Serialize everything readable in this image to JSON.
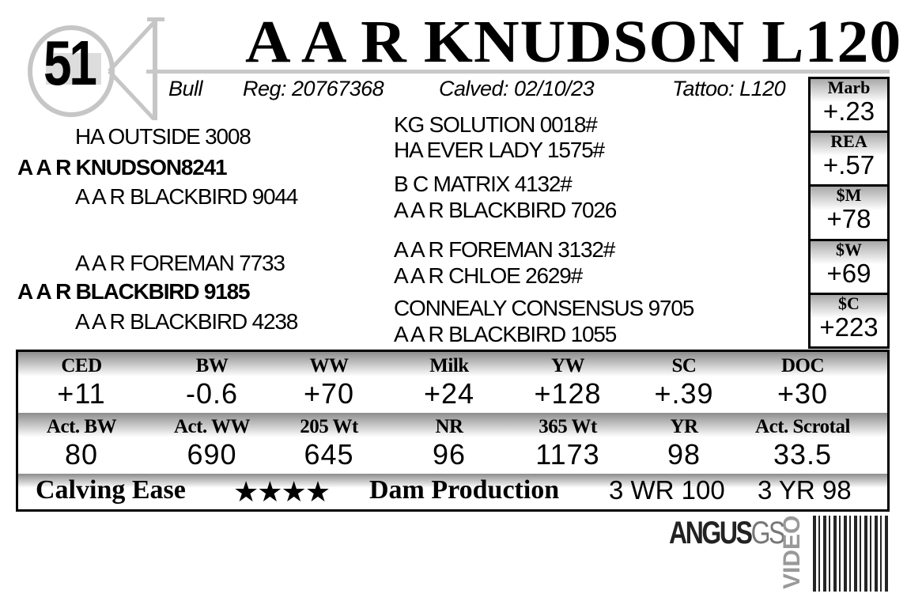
{
  "lot_number": "51",
  "title": "A A R KNUDSON L120",
  "info": {
    "type": "Bull",
    "reg": "Reg: 20767368",
    "calved": "Calved: 02/10/23",
    "tattoo": "Tattoo: L120"
  },
  "pedigree": {
    "sire": "A A R KNUDSON8241",
    "sire_sire": "HA OUTSIDE 3008",
    "sire_dam": "A A R BLACKBIRD 9044",
    "dam": "A A R BLACKBIRD 9185",
    "dam_sire": "A A R FOREMAN 7733",
    "dam_dam": "A A R BLACKBIRD 4238",
    "far": [
      "KG SOLUTION 0018#",
      "HA EVER LADY 1575#",
      "B C MATRIX 4132#",
      "A A R BLACKBIRD 7026",
      "A A R FOREMAN 3132#",
      "A A R CHLOE 2629#",
      "CONNEALY CONSENSUS 9705",
      "A A R BLACKBIRD 1055"
    ]
  },
  "side_epds": [
    {
      "label": "Marb",
      "value": "+.23"
    },
    {
      "label": "REA",
      "value": "+.57"
    },
    {
      "label": "$M",
      "value": "+78"
    },
    {
      "label": "$W",
      "value": "+69"
    },
    {
      "label": "$C",
      "value": "+223"
    }
  ],
  "epds": [
    {
      "label": "CED",
      "value": "+11"
    },
    {
      "label": "BW",
      "value": "-0.6"
    },
    {
      "label": "WW",
      "value": "+70"
    },
    {
      "label": "Milk",
      "value": "+24"
    },
    {
      "label": "YW",
      "value": "+128"
    },
    {
      "label": "SC",
      "value": "+.39"
    },
    {
      "label": "DOC",
      "value": "+30"
    }
  ],
  "actuals": [
    {
      "label": "Act. BW",
      "value": "80"
    },
    {
      "label": "Act. WW",
      "value": "690"
    },
    {
      "label": "205 Wt",
      "value": "645"
    },
    {
      "label": "NR",
      "value": "96"
    },
    {
      "label": "365 Wt",
      "value": "1173"
    },
    {
      "label": "YR",
      "value": "98"
    },
    {
      "label": "Act. Scrotal",
      "value": "33.5"
    }
  ],
  "bottom": {
    "calving_ease_label": "Calving Ease",
    "calving_ease_stars": "★★★★",
    "calving_ease_rating": 4,
    "dam_production_label": "Dam Production",
    "wr": "3 WR 100",
    "yr": "3 YR 98"
  },
  "footer": {
    "brand": "ANGUS",
    "brand_suffix": "GS",
    "video_label": "VIDEO"
  }
}
